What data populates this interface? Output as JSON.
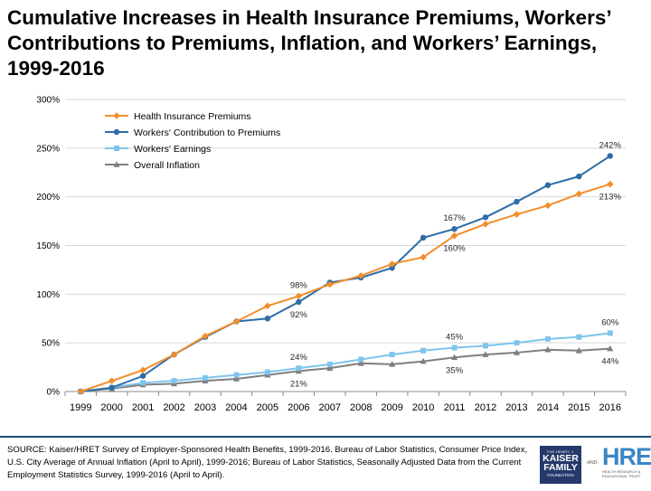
{
  "title": "Cumulative Increases in Health Insurance Premiums, Workers’\nContributions to Premiums, Inflation, and Workers’ Earnings,\n1999-2016",
  "source": "SOURCE:  Kaiser/HRET Survey of Employer-Sponsored Health Benefits, 1999-2016.  Bureau of Labor Statistics, Consumer Price Index, U.S. City Average of Annual Inflation (April to April), 1999-2016; Bureau of Labor Statistics, Seasonally Adjusted Data from the Current Employment Statistics Survey, 1999-2016 (April to April).",
  "logos": {
    "kff_line1": "THE HENRY J.",
    "kff_line2": "KAISER",
    "kff_line3": "FAMILY",
    "kff_line4": "FOUNDATION",
    "and": "-AND-",
    "hret": "HRET",
    "hret_tag1": "HEALTH RESEARCH &",
    "hret_tag2": "EDUCATIONAL TRUST"
  },
  "chart_data": {
    "type": "line",
    "x": [
      "1999",
      "2000",
      "2001",
      "2002",
      "2003",
      "2004",
      "2005",
      "2006",
      "2007",
      "2008",
      "2009",
      "2010",
      "2011",
      "2012",
      "2013",
      "2014",
      "2015",
      "2016"
    ],
    "ylim": [
      0,
      300
    ],
    "yticks": [
      "0%",
      "50%",
      "100%",
      "150%",
      "200%",
      "250%",
      "300%"
    ],
    "ytick_values": [
      0,
      50,
      100,
      150,
      200,
      250,
      300
    ],
    "grid": "horizontal",
    "legend_position": "top-left",
    "series": [
      {
        "name": "Health Insurance Premiums",
        "color": "#f28e2b",
        "marker": "diamond",
        "values": [
          0,
          11,
          22,
          38,
          57,
          72,
          88,
          98,
          110,
          119,
          131,
          138,
          160,
          172,
          182,
          191,
          203,
          213
        ]
      },
      {
        "name": "Workers' Contribution to Premiums",
        "color": "#2e6ca7",
        "marker": "circle",
        "values": [
          0,
          4,
          16,
          38,
          56,
          72,
          75,
          92,
          112,
          117,
          127,
          158,
          167,
          179,
          195,
          212,
          221,
          242
        ]
      },
      {
        "name": "Workers' Earnings",
        "color": "#7fc4ec",
        "marker": "square",
        "values": [
          0,
          4,
          9,
          11,
          14,
          17,
          20,
          24,
          28,
          33,
          38,
          42,
          45,
          47,
          50,
          54,
          56,
          60
        ]
      },
      {
        "name": "Overall Inflation",
        "color": "#7f7f7f",
        "marker": "triangle",
        "values": [
          0,
          3,
          7,
          8,
          11,
          13,
          17,
          21,
          24,
          29,
          28,
          31,
          35,
          38,
          40,
          43,
          42,
          44
        ]
      }
    ],
    "annotations": [
      {
        "text": "98%",
        "x": "2006",
        "y": 98,
        "place": "above"
      },
      {
        "text": "92%",
        "x": "2006",
        "y": 92,
        "place": "below"
      },
      {
        "text": "167%",
        "x": "2011",
        "y": 167,
        "place": "above"
      },
      {
        "text": "160%",
        "x": "2011",
        "y": 160,
        "place": "below"
      },
      {
        "text": "242%",
        "x": "2016",
        "y": 242,
        "place": "above"
      },
      {
        "text": "213%",
        "x": "2016",
        "y": 213,
        "place": "below"
      },
      {
        "text": "24%",
        "x": "2006",
        "y": 24,
        "place": "above"
      },
      {
        "text": "21%",
        "x": "2006",
        "y": 21,
        "place": "below"
      },
      {
        "text": "45%",
        "x": "2011",
        "y": 45,
        "place": "above"
      },
      {
        "text": "35%",
        "x": "2011",
        "y": 35,
        "place": "below"
      },
      {
        "text": "60%",
        "x": "2016",
        "y": 60,
        "place": "above"
      },
      {
        "text": "44%",
        "x": "2016",
        "y": 44,
        "place": "below"
      }
    ]
  }
}
